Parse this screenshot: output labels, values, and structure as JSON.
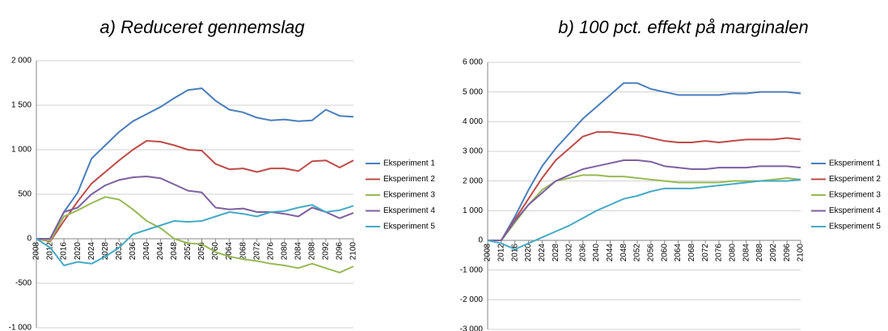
{
  "chart_data": [
    {
      "type": "line",
      "title": "a) Reduceret gennemslag",
      "x": [
        2008,
        2012,
        2016,
        2020,
        2024,
        2028,
        2032,
        2036,
        2040,
        2044,
        2048,
        2052,
        2056,
        2060,
        2064,
        2068,
        2072,
        2076,
        2080,
        2084,
        2088,
        2092,
        2096,
        2100
      ],
      "xlim": [
        2008,
        2100
      ],
      "xticks": [
        2008,
        2012,
        2016,
        2020,
        2024,
        2028,
        2032,
        2036,
        2040,
        2044,
        2048,
        2052,
        2056,
        2060,
        2064,
        2068,
        2072,
        2076,
        2080,
        2084,
        2088,
        2092,
        2096,
        2100
      ],
      "ylim": [
        -1000,
        2000
      ],
      "yticks": [
        {
          "value": -1000,
          "label": "-1 000"
        },
        -500,
        0,
        500,
        {
          "value": 1000,
          "label": "1 000"
        },
        {
          "value": 1500,
          "label": "1 500"
        },
        {
          "value": 2000,
          "label": "2 000"
        }
      ],
      "grid": true,
      "legend": "right",
      "series": [
        {
          "name": "Eksperiment 1",
          "color": "#4a7ebb",
          "values": [
            0,
            0,
            300,
            520,
            900,
            1050,
            1200,
            1320,
            1400,
            1480,
            1580,
            1670,
            1690,
            1550,
            1450,
            1420,
            1360,
            1330,
            1340,
            1320,
            1330,
            1450,
            1380,
            1370
          ]
        },
        {
          "name": "Eksperiment 2",
          "color": "#be4b48",
          "values": [
            0,
            -30,
            200,
            420,
            620,
            750,
            880,
            1000,
            1100,
            1090,
            1050,
            1000,
            990,
            840,
            780,
            790,
            750,
            790,
            790,
            760,
            870,
            880,
            800,
            880
          ]
        },
        {
          "name": "Eksperiment 3",
          "color": "#98b954",
          "values": [
            0,
            -20,
            250,
            320,
            400,
            470,
            440,
            330,
            200,
            120,
            0,
            -50,
            -60,
            -150,
            -200,
            -230,
            -250,
            -280,
            -300,
            -330,
            -280,
            -330,
            -380,
            -310
          ]
        },
        {
          "name": "Eksperiment 4",
          "color": "#7d60a0",
          "values": [
            0,
            0,
            300,
            350,
            500,
            600,
            660,
            690,
            700,
            680,
            610,
            540,
            520,
            350,
            330,
            340,
            300,
            300,
            280,
            250,
            350,
            300,
            230,
            290
          ]
        },
        {
          "name": "Eksperiment 5",
          "color": "#46aac5",
          "values": [
            0,
            -100,
            -300,
            -260,
            -280,
            -200,
            -100,
            50,
            100,
            150,
            200,
            190,
            200,
            250,
            300,
            280,
            250,
            300,
            310,
            350,
            380,
            300,
            320,
            370
          ]
        }
      ]
    },
    {
      "type": "line",
      "title": "b) 100 pct. effekt på marginalen",
      "x": [
        2008,
        2012,
        2016,
        2020,
        2024,
        2028,
        2032,
        2036,
        2040,
        2044,
        2048,
        2052,
        2056,
        2060,
        2064,
        2068,
        2072,
        2076,
        2080,
        2084,
        2088,
        2092,
        2096,
        2100
      ],
      "xlim": [
        2008,
        2100
      ],
      "xticks": [
        2008,
        2012,
        2016,
        2020,
        2024,
        2028,
        2032,
        2036,
        2040,
        2044,
        2048,
        2052,
        2056,
        2060,
        2064,
        2068,
        2072,
        2076,
        2080,
        2084,
        2088,
        2092,
        2096,
        2100
      ],
      "ylim": [
        -3000,
        6000
      ],
      "yticks": [
        {
          "value": -3000,
          "label": "-3 000"
        },
        {
          "value": -2000,
          "label": "-2 000"
        },
        {
          "value": -1000,
          "label": "-1 000"
        },
        0,
        {
          "value": 1000,
          "label": "1 000"
        },
        {
          "value": 2000,
          "label": "2 000"
        },
        {
          "value": 3000,
          "label": "3 000"
        },
        {
          "value": 4000,
          "label": "4 000"
        },
        {
          "value": 5000,
          "label": "5 000"
        },
        {
          "value": 6000,
          "label": "6 000"
        }
      ],
      "grid": true,
      "legend": "right",
      "series": [
        {
          "name": "Eksperiment 1",
          "color": "#4a7ebb",
          "values": [
            0,
            0,
            800,
            1700,
            2500,
            3100,
            3600,
            4100,
            4500,
            4900,
            5300,
            5300,
            5100,
            5000,
            4900,
            4900,
            4900,
            4900,
            4950,
            4950,
            5000,
            5000,
            5000,
            4950
          ]
        },
        {
          "name": "Eksperiment 2",
          "color": "#be4b48",
          "values": [
            0,
            0,
            700,
            1400,
            2100,
            2700,
            3100,
            3500,
            3650,
            3650,
            3600,
            3550,
            3450,
            3350,
            3300,
            3300,
            3350,
            3300,
            3350,
            3400,
            3400,
            3400,
            3450,
            3400
          ]
        },
        {
          "name": "Eksperiment 3",
          "color": "#98b954",
          "values": [
            0,
            0,
            600,
            1200,
            1700,
            2000,
            2100,
            2200,
            2200,
            2150,
            2150,
            2100,
            2050,
            2000,
            1950,
            1950,
            1950,
            1950,
            2000,
            2000,
            2000,
            2050,
            2100,
            2050
          ]
        },
        {
          "name": "Eksperiment 4",
          "color": "#7d60a0",
          "values": [
            0,
            0,
            650,
            1200,
            1600,
            2000,
            2200,
            2400,
            2500,
            2600,
            2700,
            2700,
            2650,
            2500,
            2450,
            2400,
            2400,
            2450,
            2450,
            2450,
            2500,
            2500,
            2500,
            2450
          ]
        },
        {
          "name": "Eksperiment 5",
          "color": "#46aac5",
          "values": [
            0,
            -100,
            -300,
            -100,
            100,
            300,
            500,
            750,
            1000,
            1200,
            1400,
            1500,
            1650,
            1750,
            1750,
            1750,
            1800,
            1850,
            1900,
            1950,
            2000,
            2000,
            2000,
            2050
          ]
        }
      ]
    }
  ]
}
